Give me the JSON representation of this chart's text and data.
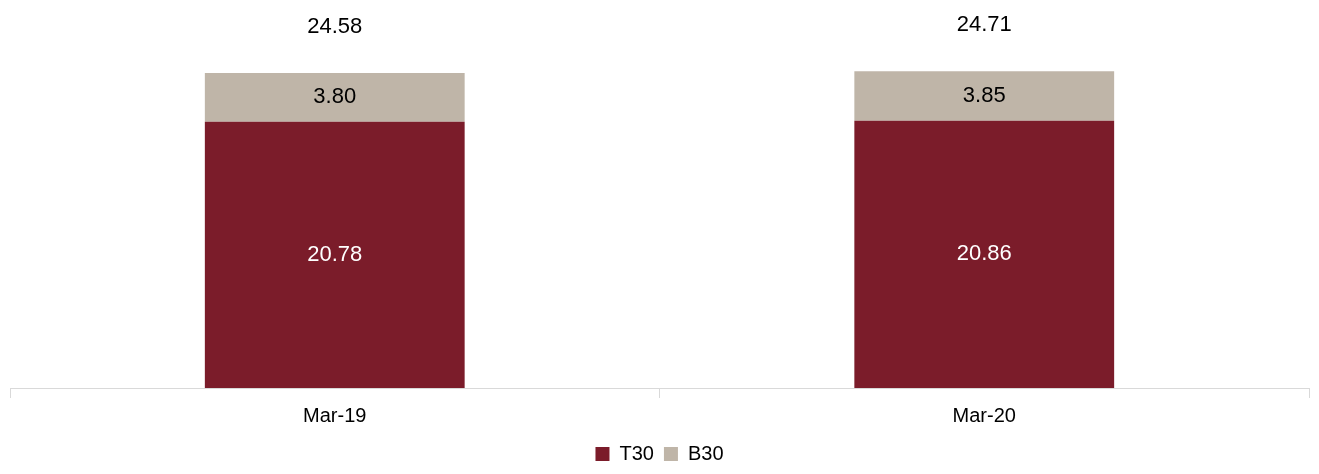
{
  "chart_data": {
    "type": "bar",
    "stacked": true,
    "categories": [
      "Mar-19",
      "Mar-20"
    ],
    "series": [
      {
        "name": "T30",
        "color": "#7b1c2a",
        "values": [
          20.78,
          20.86
        ],
        "value_labels": [
          "20.78",
          "20.86"
        ]
      },
      {
        "name": "B30",
        "color": "#bfb5a8",
        "values": [
          3.8,
          3.85
        ],
        "value_labels": [
          "3.80",
          "3.85"
        ]
      }
    ],
    "totals": [
      "24.58",
      "24.71"
    ],
    "legend": "bottom",
    "grid": false
  }
}
